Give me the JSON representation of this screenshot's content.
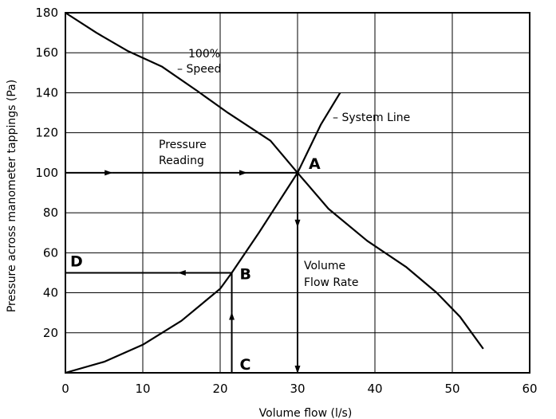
{
  "chart_data": {
    "type": "line",
    "xlabel": "Volume flow (l/s)",
    "ylabel": "Pressure across manometer tappings (Pa)",
    "xlim": [
      0,
      60
    ],
    "ylim": [
      0,
      180
    ],
    "x_ticks": [
      0,
      10,
      20,
      30,
      40,
      50,
      60
    ],
    "y_ticks": [
      20,
      40,
      60,
      80,
      100,
      120,
      140,
      160,
      180
    ],
    "grid": true,
    "series": [
      {
        "name": "100% Speed",
        "x": [
          0,
          4,
          8,
          12.5,
          17,
          21,
          26.5,
          30,
          34,
          39,
          44,
          48,
          51,
          54
        ],
        "y": [
          180,
          170,
          161,
          153,
          141,
          130,
          116,
          100,
          82,
          66,
          53,
          40,
          28,
          12
        ]
      },
      {
        "name": "System Line",
        "x": [
          0,
          5,
          10,
          15,
          20,
          21.5,
          25,
          30,
          33,
          35.5
        ],
        "y": [
          0,
          5.5,
          14,
          26,
          42,
          50,
          70,
          100,
          124,
          140
        ]
      }
    ],
    "annotations": {
      "speed_line1": "100%",
      "speed_line2": "– Speed",
      "system_line": "– System Line",
      "pressure_line1": "Pressure",
      "pressure_line2": "Reading",
      "flow_line1": "Volume",
      "flow_line2": "Flow Rate"
    },
    "points": {
      "A": {
        "label": "A",
        "x": 30,
        "y": 100
      },
      "B": {
        "label": "B",
        "x": 21.5,
        "y": 50
      },
      "C": {
        "label": "C",
        "x": 21.5,
        "y": 0
      },
      "D": {
        "label": "D",
        "x": 0,
        "y": 50
      }
    }
  }
}
